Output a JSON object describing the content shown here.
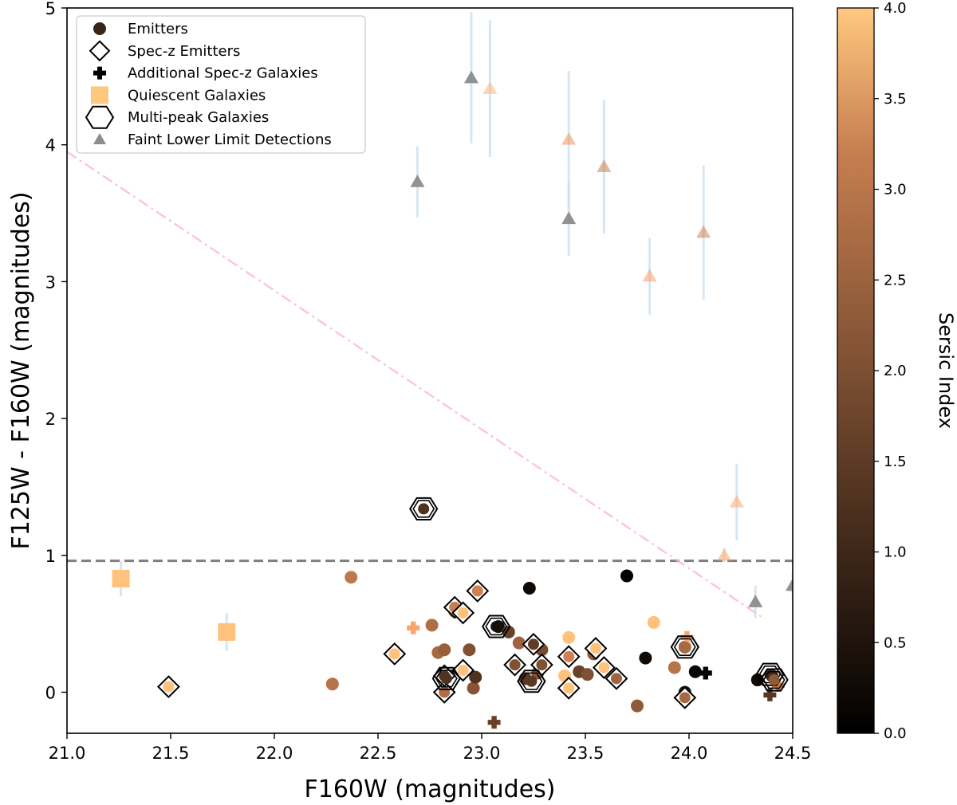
{
  "chart_data": {
    "type": "scatter",
    "xlabel": "F160W (magnitudes)",
    "ylabel": "F125W - F160W (magnitudes)",
    "xlim": [
      21.0,
      24.5
    ],
    "ylim": [
      -0.3,
      5.0
    ],
    "xticks": [
      "21.0",
      "21.5",
      "22.0",
      "22.5",
      "23.0",
      "23.5",
      "24.0",
      "24.5"
    ],
    "xtick_values": [
      21.0,
      21.5,
      22.0,
      22.5,
      23.0,
      23.5,
      24.0,
      24.5
    ],
    "yticks": [
      "0",
      "1",
      "2",
      "3",
      "4",
      "5"
    ],
    "ytick_values": [
      0,
      1,
      2,
      3,
      4,
      5
    ],
    "colorbar": {
      "label": "Sersic Index",
      "range": [
        0.0,
        4.0
      ],
      "ticks": [
        "0.0",
        "0.5",
        "1.0",
        "1.5",
        "2.0",
        "2.5",
        "3.0",
        "3.5",
        "4.0"
      ],
      "tick_values": [
        0.0,
        0.5,
        1.0,
        1.5,
        2.0,
        2.5,
        3.0,
        3.5,
        4.0
      ],
      "colormap": "copper"
    },
    "reference_lines": [
      {
        "name": "color-cut",
        "style": "dashed",
        "color": "#7f7f7f",
        "y": 0.96,
        "x": [
          21.0,
          24.5
        ]
      },
      {
        "name": "diagonal-selection",
        "style": "dashdot",
        "color": "#ffb6c1",
        "points": [
          [
            21.0,
            3.95
          ],
          [
            24.35,
            0.55
          ]
        ]
      }
    ],
    "legend": {
      "location": "upper-left",
      "entries": [
        {
          "label": "Emitters",
          "marker": "circle",
          "color": "#3a2418"
        },
        {
          "label": "Spec-z Emitters",
          "marker": "diamond",
          "color": "#000000"
        },
        {
          "label": "Additional Spec-z Galaxies",
          "marker": "plus",
          "color": "#000000"
        },
        {
          "label": "Quiescent Galaxies",
          "marker": "square",
          "color": "#ffc87f"
        },
        {
          "label": "Multi-peak Galaxies",
          "marker": "hexagon",
          "color": "#000000"
        },
        {
          "label": "Faint Lower Limit Detections",
          "marker": "triangle",
          "color": "#8c8c8c"
        }
      ]
    },
    "series": [
      {
        "name": "Faint Lower Limit Detections",
        "marker": "triangle",
        "points": [
          {
            "x": 22.95,
            "y": 4.49,
            "n": null,
            "yerr": 0.48
          },
          {
            "x": 23.04,
            "y": 4.41,
            "n": 3.6,
            "yerr": 0.5
          },
          {
            "x": 22.69,
            "y": 3.73,
            "n": null,
            "yerr": 0.26
          },
          {
            "x": 23.42,
            "y": 4.04,
            "n": 3.0,
            "yerr": 0.5
          },
          {
            "x": 23.42,
            "y": 3.46,
            "n": null,
            "yerr": 0.27
          },
          {
            "x": 23.59,
            "y": 3.84,
            "n": 2.5,
            "yerr": 0.49
          },
          {
            "x": 24.07,
            "y": 3.36,
            "n": 2.6,
            "yerr": 0.49
          },
          {
            "x": 23.81,
            "y": 3.04,
            "n": 3.2,
            "yerr": 0.28
          },
          {
            "x": 24.23,
            "y": 1.39,
            "n": 3.4,
            "yerr": 0.28
          },
          {
            "x": 24.17,
            "y": 1.0,
            "n": 3.3,
            "yerr": 0.05
          },
          {
            "x": 24.32,
            "y": 0.66,
            "n": null,
            "yerr": 0.12
          },
          {
            "x": 24.5,
            "y": 0.78,
            "n": null,
            "yerr": 0.1
          }
        ]
      },
      {
        "name": "Quiescent Galaxies",
        "marker": "square",
        "points": [
          {
            "x": 21.26,
            "y": 0.83,
            "n": 3.9,
            "yerr": 0.13
          },
          {
            "x": 21.77,
            "y": 0.44,
            "n": 3.9,
            "yerr": 0.14
          }
        ]
      },
      {
        "name": "Emitters",
        "marker": "circle",
        "points": [
          {
            "x": 22.37,
            "y": 0.84,
            "n": 2.4
          },
          {
            "x": 22.28,
            "y": 0.06,
            "n": 2.3
          },
          {
            "x": 22.76,
            "y": 0.49,
            "n": 2.2
          },
          {
            "x": 22.79,
            "y": 0.29,
            "n": 2.1
          },
          {
            "x": 22.82,
            "y": 0.31,
            "n": 1.9
          },
          {
            "x": 22.87,
            "y": 0.59,
            "n": 2.0
          },
          {
            "x": 22.94,
            "y": 0.31,
            "n": 1.6
          },
          {
            "x": 22.96,
            "y": 0.03,
            "n": 1.7
          },
          {
            "x": 22.97,
            "y": 0.11,
            "n": 1.0
          },
          {
            "x": 23.08,
            "y": 0.48,
            "n": 0.3
          },
          {
            "x": 23.13,
            "y": 0.44,
            "n": 1.3
          },
          {
            "x": 23.18,
            "y": 0.36,
            "n": 2.0
          },
          {
            "x": 23.23,
            "y": 0.76,
            "n": 0.2
          },
          {
            "x": 23.16,
            "y": 0.19,
            "n": 1.4
          },
          {
            "x": 23.21,
            "y": 0.1,
            "n": 1.1
          },
          {
            "x": 23.29,
            "y": 0.31,
            "n": 1.5
          },
          {
            "x": 23.27,
            "y": 0.14,
            "n": 1.7
          },
          {
            "x": 23.4,
            "y": 0.12,
            "n": 3.9
          },
          {
            "x": 23.42,
            "y": 0.4,
            "n": 3.9
          },
          {
            "x": 23.47,
            "y": 0.15,
            "n": 1.3
          },
          {
            "x": 23.51,
            "y": 0.13,
            "n": 1.6
          },
          {
            "x": 23.54,
            "y": 0.28,
            "n": 1.8
          },
          {
            "x": 23.7,
            "y": 0.85,
            "n": 0.0
          },
          {
            "x": 23.75,
            "y": -0.1,
            "n": 1.8
          },
          {
            "x": 23.79,
            "y": 0.25,
            "n": 0.2
          },
          {
            "x": 23.83,
            "y": 0.51,
            "n": 3.9
          },
          {
            "x": 23.93,
            "y": 0.18,
            "n": 2.3
          },
          {
            "x": 23.98,
            "y": 0.33,
            "n": 2.1
          },
          {
            "x": 23.98,
            "y": 0.0,
            "n": 0.4
          },
          {
            "x": 24.03,
            "y": 0.15,
            "n": 0.1
          },
          {
            "x": 24.33,
            "y": 0.09,
            "n": 0.2
          },
          {
            "x": 24.4,
            "y": 0.12,
            "n": 0.8
          }
        ]
      },
      {
        "name": "Additional Spec-z Galaxies",
        "marker": "plus",
        "points": [
          {
            "x": 22.67,
            "y": 0.47,
            "n": 3.3
          },
          {
            "x": 23.06,
            "y": -0.22,
            "n": 1.3
          },
          {
            "x": 23.99,
            "y": 0.4,
            "n": 3.3
          },
          {
            "x": 24.08,
            "y": 0.14,
            "n": 0.1
          },
          {
            "x": 24.39,
            "y": -0.02,
            "n": 1.1
          },
          {
            "x": 24.43,
            "y": 0.05,
            "n": 2.6
          }
        ]
      },
      {
        "name": "Spec-z Emitters",
        "marker": "diamond",
        "points": [
          {
            "x": 21.49,
            "y": 0.04,
            "n": 3.9
          },
          {
            "x": 22.58,
            "y": 0.28,
            "n": 3.9
          },
          {
            "x": 22.87,
            "y": 0.62,
            "n": 2.5
          },
          {
            "x": 22.91,
            "y": 0.58,
            "n": 3.9
          },
          {
            "x": 22.98,
            "y": 0.74,
            "n": 2.6
          },
          {
            "x": 22.82,
            "y": 0.0,
            "n": 2.2
          },
          {
            "x": 22.82,
            "y": 0.12,
            "n": 1.0
          },
          {
            "x": 22.91,
            "y": 0.16,
            "n": 3.9
          },
          {
            "x": 23.16,
            "y": 0.2,
            "n": 1.6
          },
          {
            "x": 23.25,
            "y": 0.35,
            "n": 1.2
          },
          {
            "x": 23.29,
            "y": 0.2,
            "n": 1.6
          },
          {
            "x": 23.42,
            "y": 0.26,
            "n": 2.6
          },
          {
            "x": 23.42,
            "y": 0.03,
            "n": 3.9
          },
          {
            "x": 23.55,
            "y": 0.32,
            "n": 3.9
          },
          {
            "x": 23.59,
            "y": 0.18,
            "n": 3.9
          },
          {
            "x": 23.65,
            "y": 0.1,
            "n": 2.0
          },
          {
            "x": 23.98,
            "y": -0.04,
            "n": 2.1
          }
        ]
      },
      {
        "name": "Multi-peak Galaxies",
        "marker": "hexagon",
        "points": [
          {
            "x": 22.72,
            "y": 1.34,
            "n": 1.0
          },
          {
            "x": 23.07,
            "y": 0.48,
            "n": 0.3
          },
          {
            "x": 22.83,
            "y": 0.1,
            "n": 1.0
          },
          {
            "x": 23.24,
            "y": 0.08,
            "n": 1.1
          },
          {
            "x": 23.98,
            "y": 0.33,
            "n": 2.1
          },
          {
            "x": 24.39,
            "y": 0.13,
            "n": 0.8
          },
          {
            "x": 24.41,
            "y": 0.09,
            "n": 1.8
          }
        ]
      }
    ]
  }
}
